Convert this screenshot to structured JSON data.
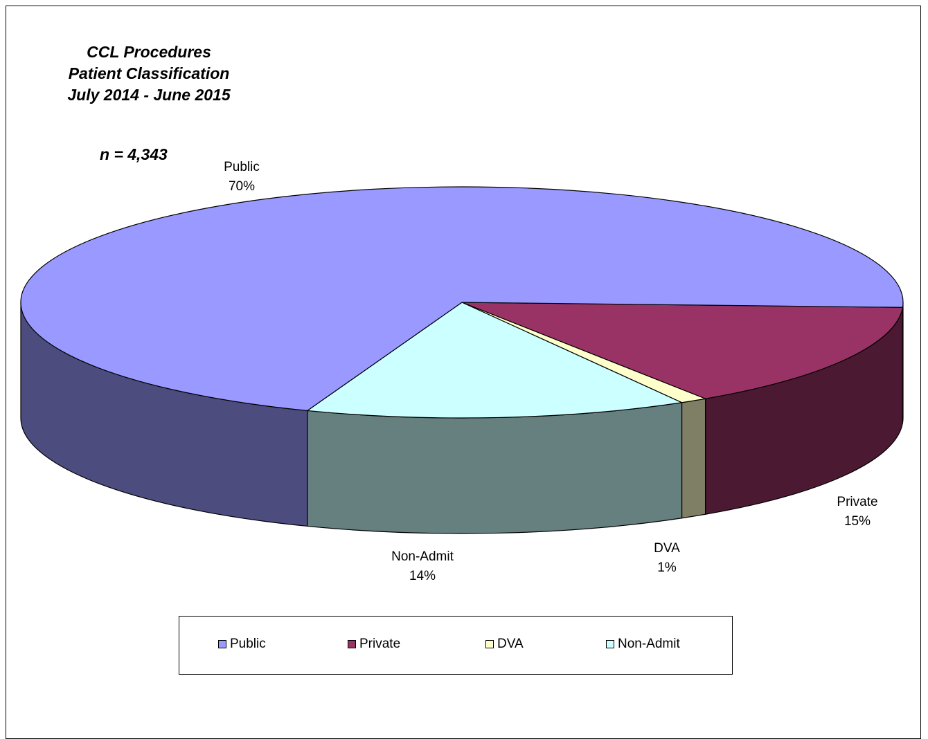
{
  "chart_data": {
    "type": "pie",
    "title_lines": [
      "CCL Procedures",
      "Patient Classification",
      "July 2014 - June 2015"
    ],
    "subtitle": "n = 4,343",
    "slices": [
      {
        "name": "Public",
        "percent_label": "70%",
        "value": 70,
        "color": "#9999ff",
        "side_color": "#4c4c7f"
      },
      {
        "name": "Private",
        "percent_label": "15%",
        "value": 15,
        "color": "#993366",
        "side_color": "#4c1932"
      },
      {
        "name": "DVA",
        "percent_label": "1%",
        "value": 1,
        "color": "#ffffcc",
        "side_color": "#7f7f66"
      },
      {
        "name": "Non-Admit",
        "percent_label": "14%",
        "value": 14,
        "color": "#ccffff",
        "side_color": "#667f7f"
      }
    ],
    "legend": {
      "placement": "bottom",
      "items": [
        "Public",
        "Private",
        "DVA",
        "Non-Admit"
      ]
    }
  }
}
